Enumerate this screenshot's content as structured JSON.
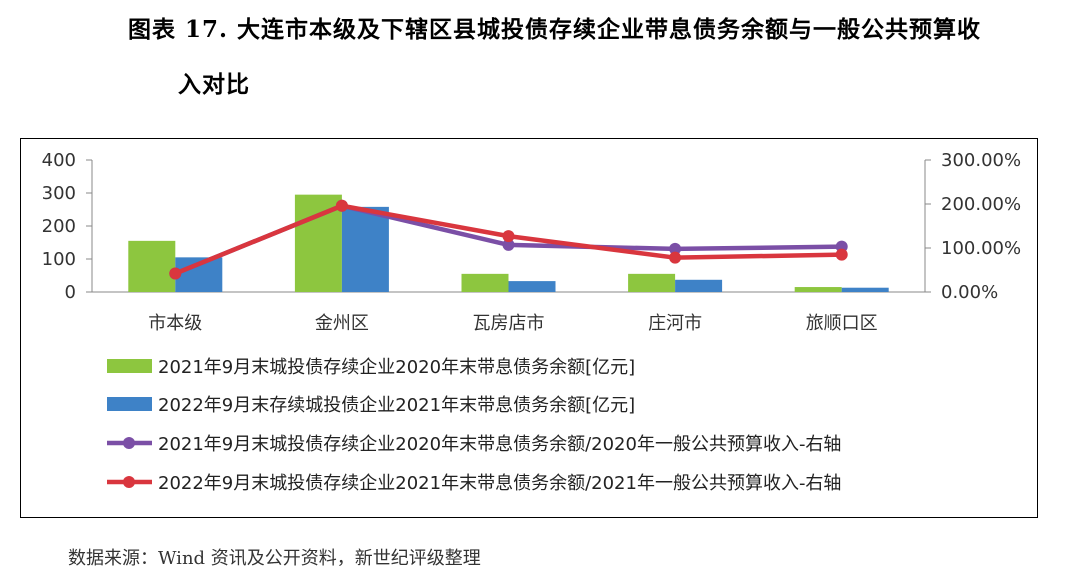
{
  "title": {
    "line1": "图表 17. 大连市本级及下辖区县城投债存续企业带息债务余额与一般公共预算收",
    "line2": "入对比"
  },
  "source": "数据来源：Wind 资讯及公开资料，新世纪评级整理",
  "chart_data": {
    "type": "bar",
    "categories": [
      "市本级",
      "金州区",
      "瓦房店市",
      "庄河市",
      "旅顺口区"
    ],
    "y_left": {
      "ticks": [
        "0",
        "100",
        "200",
        "300",
        "400"
      ],
      "ylim": [
        0,
        400
      ]
    },
    "y_right": {
      "ticks": [
        "0.00%",
        "100.00%",
        "200.00%",
        "300.00%"
      ],
      "ylim": [
        0,
        3
      ]
    },
    "grid": false,
    "legend_position": "bottom",
    "series": [
      {
        "name": "2021年9月末城投债存续企业2020年末带息债务余额[亿元]",
        "kind": "bar",
        "axis": "left",
        "color": "#8DC63F",
        "values": [
          155,
          295,
          55,
          55,
          15
        ]
      },
      {
        "name": "2022年9月末存续城投债企业2021年末带息债务余额[亿元]",
        "kind": "bar",
        "axis": "left",
        "color": "#3E82C7",
        "values": [
          105,
          258,
          33,
          37,
          13
        ]
      },
      {
        "name": "2021年9月末城投债存续企业2020年末带息债务余额/2020年一般公共预算收入-右轴",
        "kind": "line",
        "axis": "right",
        "color": "#7B4FA6",
        "values": [
          0.42,
          1.96,
          1.07,
          0.98,
          1.03
        ]
      },
      {
        "name": "2022年9月末城投债存续企业2021年末带息债务余额/2021年一般公共预算收入-右轴",
        "kind": "line",
        "axis": "right",
        "color": "#D9363E",
        "values": [
          0.42,
          1.96,
          1.27,
          0.78,
          0.85
        ]
      }
    ]
  }
}
